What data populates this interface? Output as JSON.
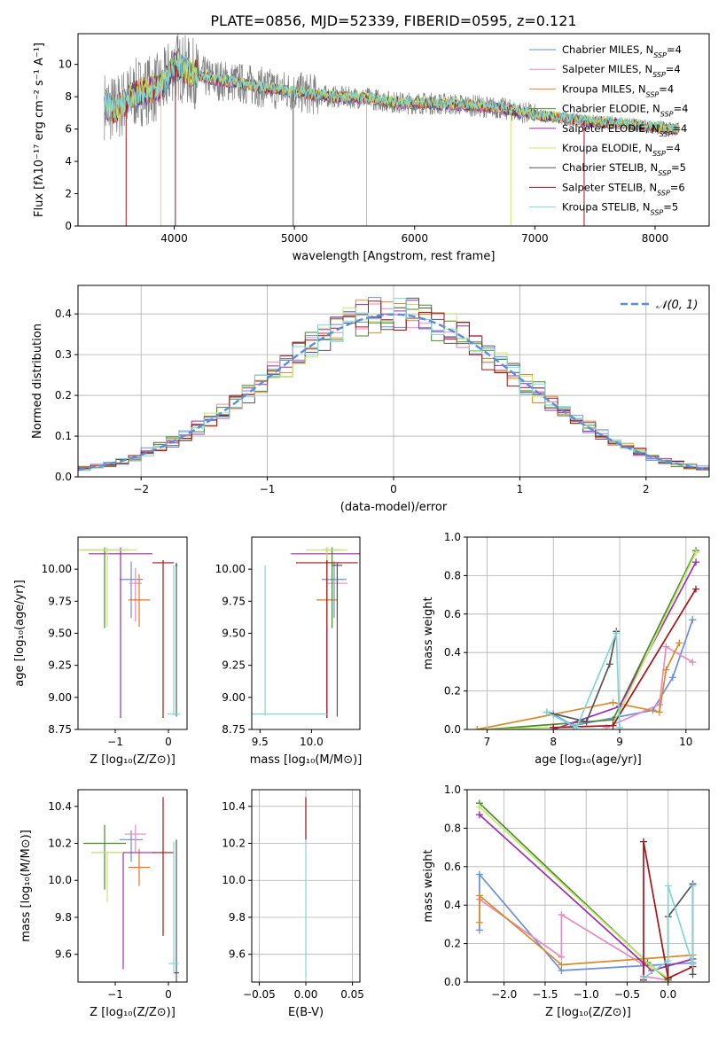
{
  "figure_title": "PLATE=0856, MJD=52339, FIBERID=0595, z=0.121",
  "colors": {
    "c0": "#6b8fd9",
    "c1": "#e88bbf",
    "c2": "#d98a2b",
    "c3": "#4a8a2e",
    "c4": "#9b2fae",
    "c5": "#c8e86a",
    "c6": "#555555",
    "c7": "#a3141b",
    "c8": "#7fd6d6",
    "c9": "#e8751e",
    "gauss": "#5b8ed8",
    "spec_gray": "#808080"
  },
  "chart_data": [
    {
      "id": "spectrum",
      "type": "line",
      "xlabel": "wavelength [Angstrom, rest frame]",
      "ylabel": "Flux [fλ10⁻¹⁷ erg cm⁻² s⁻¹ A⁻¹]",
      "xlim": [
        3200,
        8450
      ],
      "ylim": [
        0,
        11.9
      ],
      "xticks": [
        "4000",
        "5000",
        "6000",
        "7000",
        "8000"
      ],
      "yticks": [
        "0",
        "2",
        "4",
        "6",
        "8",
        "10"
      ],
      "grid": false,
      "legend_position": "top-right",
      "continuum": {
        "x": [
          3420,
          3500,
          3700,
          3900,
          4000,
          4100,
          4300,
          4500,
          4800,
          5000,
          5300,
          5600,
          5900,
          6100,
          6400,
          6700,
          7000,
          7300,
          7600,
          7800,
          8000,
          8200
        ],
        "y": [
          7.5,
          7.2,
          8.3,
          8.6,
          10.0,
          9.6,
          9.1,
          8.9,
          8.5,
          8.3,
          8.0,
          7.9,
          7.6,
          7.6,
          7.5,
          7.3,
          6.9,
          6.6,
          6.4,
          6.3,
          6.1,
          6.0
        ]
      },
      "series": [
        {
          "name": "Chabrier MILES, N",
          "sub": "SSP",
          "suffix": "=4",
          "color": "c0"
        },
        {
          "name": "Salpeter MILES, N",
          "sub": "SSP",
          "suffix": "=4",
          "color": "c1"
        },
        {
          "name": "Kroupa MILES, N",
          "sub": "SSP",
          "suffix": "=4",
          "color": "c2"
        },
        {
          "name": "Chabrier ELODIE, N",
          "sub": "SSP",
          "suffix": "=4",
          "color": "c3"
        },
        {
          "name": "Salpeter ELODIE, N",
          "sub": "SSP",
          "suffix": "=4",
          "color": "c4"
        },
        {
          "name": "Kroupa ELODIE, N",
          "sub": "SSP",
          "suffix": "=4",
          "color": "c5"
        },
        {
          "name": "Chabrier STELIB, N",
          "sub": "SSP",
          "suffix": "=5",
          "color": "c6"
        },
        {
          "name": "Salpeter STELIB, N",
          "sub": "SSP",
          "suffix": "=6",
          "color": "c7"
        },
        {
          "name": "Kroupa STELIB, N",
          "sub": "SSP",
          "suffix": "=5",
          "color": "c8"
        }
      ],
      "dips": [
        {
          "x": 3600,
          "color": "c7"
        },
        {
          "x": 3890,
          "color": "c5"
        },
        {
          "x": 4010,
          "color": "c7"
        },
        {
          "x": 4990,
          "color": "c6"
        },
        {
          "x": 5600,
          "color": "c8"
        },
        {
          "x": 6800,
          "color": "c5"
        },
        {
          "x": 7410,
          "color": "c7"
        }
      ]
    },
    {
      "id": "residuals",
      "type": "bar",
      "xlabel": "(data-model)/error",
      "ylabel": "Normed distribution",
      "xlim": [
        -2.5,
        2.5
      ],
      "ylim": [
        0,
        0.47
      ],
      "xticks": [
        "−2",
        "−1",
        "0",
        "1",
        "2"
      ],
      "yticks": [
        "0.0",
        "0.1",
        "0.2",
        "0.3",
        "0.4"
      ],
      "grid": true,
      "legend_position": "top-right",
      "legend_label": "𝒩(0, 1)",
      "bin_width": 0.1,
      "series_colors": [
        "c0",
        "c1",
        "c2",
        "c3",
        "c4",
        "c5",
        "c6",
        "c7",
        "c8"
      ]
    },
    {
      "id": "age_vs_Z",
      "type": "scatter",
      "xlabel": "Z [log₁₀(Z/Z⊙)]",
      "ylabel": "age  [log₁₀(age/yr)]",
      "xlim": [
        -1.7,
        0.35
      ],
      "ylim": [
        8.75,
        10.25
      ],
      "xticks": [
        "−1",
        "0"
      ],
      "yticks": [
        "8.75",
        "9.00",
        "9.25",
        "9.50",
        "9.75",
        "10.00"
      ],
      "grid": false,
      "points": [
        {
          "x": -0.7,
          "y": 9.92,
          "xe": 0.22,
          "yl": 0.3,
          "yh": 0.14,
          "color": "c0"
        },
        {
          "x": -0.62,
          "y": 9.89,
          "xe": 0.12,
          "yl": 0.3,
          "yh": 0.12,
          "color": "c1"
        },
        {
          "x": -0.55,
          "y": 9.76,
          "xe": 0.2,
          "yl": 0.21,
          "yh": 0.2,
          "color": "c9"
        },
        {
          "x": -1.2,
          "y": 10.15,
          "xe": 0.45,
          "yl": 0.61,
          "yh": 0.02,
          "color": "c3"
        },
        {
          "x": -0.9,
          "y": 10.12,
          "xe": 0.6,
          "yl": 1.28,
          "yh": 0.05,
          "color": "c4"
        },
        {
          "x": -1.15,
          "y": 10.15,
          "xe": 0.55,
          "yl": 0.6,
          "yh": 0.02,
          "color": "c5"
        },
        {
          "x": 0.15,
          "y": 10.03,
          "xe": 0.02,
          "yl": 1.18,
          "yh": 0.02,
          "color": "c6"
        },
        {
          "x": -0.1,
          "y": 10.05,
          "xe": 0.2,
          "yl": 1.21,
          "yh": 0.02,
          "color": "c7"
        },
        {
          "x": 0.1,
          "y": 8.87,
          "xe": 0.12,
          "yl": 0.01,
          "yh": 1.16,
          "color": "c8"
        }
      ]
    },
    {
      "id": "age_vs_mass",
      "type": "scatter",
      "xlabel": "mass [log₁₀(M/M⊙)]",
      "ylabel": "",
      "xlim": [
        9.42,
        10.47
      ],
      "ylim": [
        8.75,
        10.25
      ],
      "xticks": [
        "9.5",
        "10.0"
      ],
      "yticks": [
        "8.75",
        "9.00",
        "9.25",
        "9.50",
        "9.75",
        "10.00"
      ],
      "grid": false,
      "points": [
        {
          "x": 10.22,
          "y": 9.92,
          "xe": 0.12,
          "yl": 0.3,
          "yh": 0.14,
          "color": "c0"
        },
        {
          "x": 10.25,
          "y": 9.89,
          "xe": 0.1,
          "yl": 0.3,
          "yh": 0.12,
          "color": "c1"
        },
        {
          "x": 10.15,
          "y": 9.76,
          "xe": 0.1,
          "yl": 0.21,
          "yh": 0.2,
          "color": "c9"
        },
        {
          "x": 10.2,
          "y": 10.15,
          "xe": 0.1,
          "yl": 0.61,
          "yh": 0.02,
          "color": "c3"
        },
        {
          "x": 10.15,
          "y": 10.12,
          "xe": 0.35,
          "yl": 1.28,
          "yh": 0.05,
          "color": "c4"
        },
        {
          "x": 10.15,
          "y": 10.15,
          "xe": 0.2,
          "yl": 0.6,
          "yh": 0.02,
          "color": "c5"
        },
        {
          "x": 10.25,
          "y": 10.03,
          "xe": 0.05,
          "yl": 1.18,
          "yh": 0.02,
          "color": "c6"
        },
        {
          "x": 10.15,
          "y": 10.05,
          "xe": 0.3,
          "yl": 1.21,
          "yh": 0.02,
          "color": "c7"
        },
        {
          "x": 9.55,
          "y": 8.87,
          "xe": 0.6,
          "yl": 0.01,
          "yh": 1.16,
          "color": "c8"
        }
      ]
    },
    {
      "id": "weight_vs_age",
      "type": "line",
      "xlabel": "age  [log₁₀(age/yr)]",
      "ylabel": "mass weight",
      "xlim": [
        6.7,
        10.35
      ],
      "ylim": [
        0,
        1
      ],
      "xticks": [
        "7",
        "8",
        "9",
        "10"
      ],
      "yticks": [
        "0.0",
        "0.2",
        "0.4",
        "0.6",
        "0.8",
        "1.0"
      ],
      "grid": true,
      "series": [
        {
          "color": "c0",
          "x": [
            8.0,
            8.3,
            9.5,
            9.8,
            10.1
          ],
          "y": [
            0.08,
            0.02,
            0.1,
            0.27,
            0.57
          ]
        },
        {
          "color": "c1",
          "x": [
            8.8,
            9.6,
            9.7,
            10.1
          ],
          "y": [
            0.01,
            0.13,
            0.43,
            0.35
          ]
        },
        {
          "color": "c2",
          "x": [
            6.85,
            8.9,
            9.6,
            9.7,
            9.9
          ],
          "y": [
            0.0,
            0.14,
            0.09,
            0.31,
            0.45
          ]
        },
        {
          "color": "c3",
          "x": [
            7.0,
            8.9,
            10.15
          ],
          "y": [
            0.0,
            0.05,
            0.93
          ]
        },
        {
          "color": "c4",
          "x": [
            8.0,
            9.0,
            10.15
          ],
          "y": [
            0.0,
            0.12,
            0.87
          ]
        },
        {
          "color": "c5",
          "x": [
            7.0,
            8.9,
            10.15
          ],
          "y": [
            0.0,
            0.02,
            0.92
          ]
        },
        {
          "color": "c6",
          "x": [
            7.9,
            8.5,
            8.85,
            8.95
          ],
          "y": [
            0.09,
            0.04,
            0.34,
            0.51
          ]
        },
        {
          "color": "c7",
          "x": [
            8.0,
            8.9,
            10.15
          ],
          "y": [
            0.01,
            0.02,
            0.73
          ]
        },
        {
          "color": "c8",
          "x": [
            7.9,
            8.35,
            8.95,
            9.0
          ],
          "y": [
            0.09,
            0.01,
            0.5,
            0.01
          ]
        }
      ]
    },
    {
      "id": "mass_vs_Z",
      "type": "scatter",
      "xlabel": "Z [log₁₀(Z/Z⊙)]",
      "ylabel": "mass [log₁₀(M/M⊙)]",
      "xlim": [
        -1.7,
        0.35
      ],
      "ylim": [
        9.45,
        10.49
      ],
      "xticks": [
        "−1",
        "0"
      ],
      "yticks": [
        "9.6",
        "9.8",
        "10.0",
        "10.2",
        "10.4"
      ],
      "grid": false,
      "points": [
        {
          "x": -0.7,
          "y": 10.22,
          "xe": 0.22,
          "yl": 0.12,
          "yh": 0.05,
          "color": "c0"
        },
        {
          "x": -0.62,
          "y": 10.25,
          "xe": 0.2,
          "yl": 0.1,
          "yh": 0.05,
          "color": "c1"
        },
        {
          "x": -0.55,
          "y": 10.07,
          "xe": 0.2,
          "yl": 0.1,
          "yh": 0.1,
          "color": "c9"
        },
        {
          "x": -1.2,
          "y": 10.2,
          "xe": 0.4,
          "yl": 0.25,
          "yh": 0.1,
          "color": "c3"
        },
        {
          "x": -0.85,
          "y": 10.15,
          "xe": 0.6,
          "yl": 0.63,
          "yh": 0.0,
          "color": "c4"
        },
        {
          "x": -1.15,
          "y": 10.15,
          "xe": 0.3,
          "yl": 0.27,
          "yh": 0.0,
          "color": "c5"
        },
        {
          "x": 0.15,
          "y": 9.5,
          "xe": 0.05,
          "yl": 0.05,
          "yh": 0.72,
          "color": "c6"
        },
        {
          "x": -0.1,
          "y": 10.15,
          "xe": 0.2,
          "yl": 0.45,
          "yh": 0.3,
          "color": "c7"
        },
        {
          "x": 0.1,
          "y": 9.55,
          "xe": 0.1,
          "yl": 0.05,
          "yh": 0.66,
          "color": "c8"
        }
      ]
    },
    {
      "id": "mass_vs_EBV",
      "type": "scatter",
      "xlabel": "E(B-V)",
      "ylabel": "",
      "xlim": [
        -0.058,
        0.058
      ],
      "ylim": [
        9.45,
        10.49
      ],
      "xticks": [
        "−0.05",
        "0.00",
        "0.05"
      ],
      "yticks": [
        "9.6",
        "9.8",
        "10.0",
        "10.2",
        "10.4"
      ],
      "grid": true,
      "points": [
        {
          "x": 0.0,
          "y": 10.1,
          "xe": 0.0,
          "yl": 0.62,
          "yh": 0.34,
          "color": "c8"
        },
        {
          "x": 0.0,
          "y": 10.3,
          "xe": 0.0,
          "yl": 0.08,
          "yh": 0.15,
          "color": "c7"
        }
      ]
    },
    {
      "id": "weight_vs_Z",
      "type": "line",
      "xlabel": "Z [log₁₀(Z/Z⊙)]",
      "ylabel": "mass weight",
      "xlim": [
        -2.45,
        0.5
      ],
      "ylim": [
        0,
        1
      ],
      "xticks": [
        "−2.0",
        "−1.5",
        "−1.0",
        "−0.5",
        "0.0"
      ],
      "yticks": [
        "0.0",
        "0.2",
        "0.4",
        "0.6",
        "0.8",
        "1.0"
      ],
      "grid": true,
      "series": [
        {
          "color": "c0",
          "x": [
            -2.3,
            -2.3,
            -1.3,
            0.3
          ],
          "y": [
            0.27,
            0.56,
            0.06,
            0.1
          ]
        },
        {
          "color": "c1",
          "x": [
            -2.3,
            -1.3,
            -1.3,
            -0.3,
            -0.3,
            0.0
          ],
          "y": [
            0.43,
            0.13,
            0.35,
            0.09,
            0.03,
            0.01
          ]
        },
        {
          "color": "c2",
          "x": [
            -2.3,
            -2.3,
            -1.3,
            0.3
          ],
          "y": [
            0.31,
            0.45,
            0.09,
            0.14
          ]
        },
        {
          "color": "c3",
          "x": [
            -2.3,
            -0.25,
            0.0
          ],
          "y": [
            0.93,
            0.1,
            0.01
          ]
        },
        {
          "color": "c4",
          "x": [
            -2.3,
            -0.2,
            0.3
          ],
          "y": [
            0.87,
            0.06,
            0.12
          ]
        },
        {
          "color": "c5",
          "x": [
            -2.3,
            -0.2,
            0.0
          ],
          "y": [
            0.91,
            0.08,
            0.02
          ]
        },
        {
          "color": "c6",
          "x": [
            0.0,
            0.0,
            0.3,
            0.3
          ],
          "y": [
            0.02,
            0.34,
            0.51,
            0.04
          ]
        },
        {
          "color": "c7",
          "x": [
            -0.3,
            -0.3,
            0.0,
            0.3
          ],
          "y": [
            0.01,
            0.73,
            0.02,
            0.08
          ]
        },
        {
          "color": "c8",
          "x": [
            -0.3,
            0.0,
            0.0,
            0.3,
            0.3
          ],
          "y": [
            0.02,
            0.11,
            0.5,
            0.09,
            0.5
          ]
        }
      ]
    }
  ]
}
